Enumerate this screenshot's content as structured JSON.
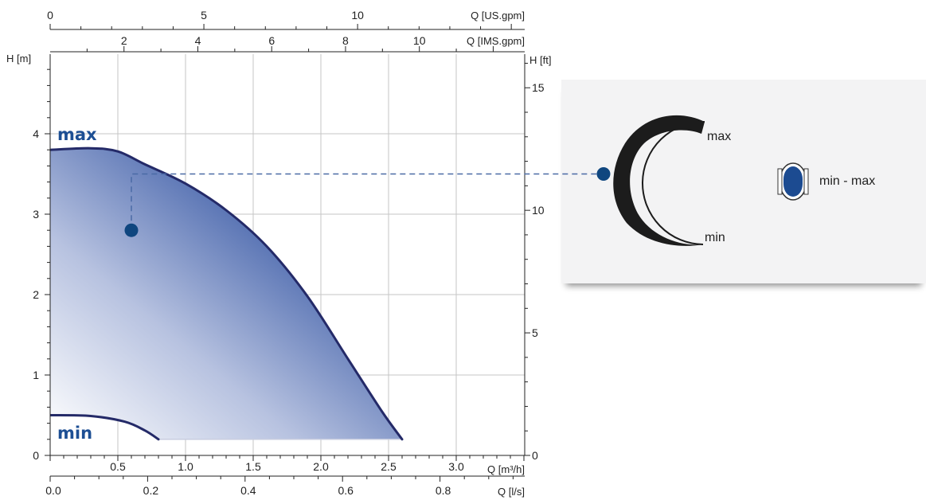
{
  "chart_data": {
    "type": "area",
    "axes": {
      "x_bottom_m3h": {
        "label": "Q [m³/h]",
        "range": [
          0,
          3.5
        ],
        "ticks": [
          0.5,
          1.0,
          1.5,
          2.0,
          2.5,
          3.0
        ],
        "tick_labels": [
          "0.5",
          "1.0",
          "1.5",
          "2.0",
          "2.5",
          "3.0"
        ]
      },
      "x_bottom_ls": {
        "label": "Q [l/s]",
        "ticks": [
          0.0,
          0.2,
          0.4,
          0.6,
          0.8
        ],
        "tick_labels": [
          "0.0",
          "0.2",
          "0.4",
          "0.6",
          "0.8"
        ]
      },
      "x_top_usgpm": {
        "label": "Q [US.gpm]",
        "ticks": [
          0,
          5,
          10
        ],
        "tick_labels": [
          "0",
          "5",
          "10"
        ]
      },
      "x_top_imsgpm": {
        "label": "Q [IMS.gpm]",
        "ticks": [
          2,
          4,
          6,
          8,
          10
        ],
        "tick_labels": [
          "2",
          "4",
          "6",
          "8",
          "10"
        ]
      },
      "y_left_m": {
        "label": "H [m]",
        "range": [
          0,
          5
        ],
        "ticks": [
          0,
          1,
          2,
          3,
          4
        ],
        "tick_labels": [
          "0",
          "1",
          "2",
          "3",
          "4"
        ]
      },
      "y_right_ft": {
        "label": "H [ft]",
        "ticks": [
          0,
          5,
          10,
          15
        ],
        "tick_labels": [
          "0",
          "5",
          "10",
          "15"
        ]
      }
    },
    "grid": true,
    "series": [
      {
        "name": "max",
        "x": [
          0.0,
          0.3,
          0.5,
          0.7,
          1.0,
          1.3,
          1.6,
          1.9,
          2.2,
          2.45,
          2.6
        ],
        "y": [
          3.8,
          3.82,
          3.78,
          3.62,
          3.38,
          3.05,
          2.6,
          1.98,
          1.2,
          0.55,
          0.2
        ]
      },
      {
        "name": "min",
        "x": [
          0.0,
          0.3,
          0.55,
          0.7,
          0.8
        ],
        "y": [
          0.5,
          0.49,
          0.42,
          0.31,
          0.2
        ]
      }
    ],
    "operating_point": {
      "x": 0.6,
      "y": 2.8
    },
    "guide_level": 3.5,
    "legend": {
      "arc_max_label": "max",
      "arc_min_label": "min",
      "setting_label": "min - max"
    },
    "colors": {
      "fill_dark": "#1c3f8f",
      "fill_light": "#ffffff",
      "outline": "#242a68",
      "marker": "#0f467f",
      "guide": "#4a6aa5",
      "grid": "#c6c6c6",
      "arc": "#1c1c1c",
      "panel": "#f3f3f4"
    }
  }
}
